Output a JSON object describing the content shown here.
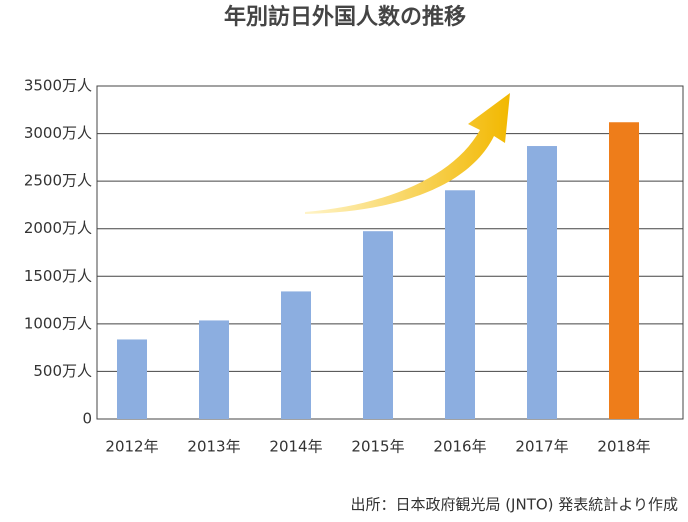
{
  "chart_data": {
    "type": "bar",
    "title": "年別訪日外国人数の推移",
    "categories": [
      "2012年",
      "2013年",
      "2014年",
      "2015年",
      "2016年",
      "2017年",
      "2018年"
    ],
    "values": [
      836,
      1036,
      1341,
      1974,
      2404,
      2869,
      3119
    ],
    "colors": [
      "#8caee0",
      "#8caee0",
      "#8caee0",
      "#8caee0",
      "#8caee0",
      "#8caee0",
      "#ee7d1a"
    ],
    "ylim": [
      0,
      3500
    ],
    "yticks": [
      0,
      {
        "value": 500,
        "label": "500万人"
      },
      {
        "value": 1000,
        "label": "1000万人"
      },
      {
        "value": 1500,
        "label": "1500万人"
      },
      {
        "value": 2000,
        "label": "2000万人"
      },
      {
        "value": 2500,
        "label": "2500万人"
      },
      {
        "value": 3000,
        "label": "3000万人"
      },
      {
        "value": 3500,
        "label": "3500万人"
      }
    ],
    "grid": true,
    "source": "出所：日本政府観光局 (JNTO) 発表統計より作成"
  }
}
